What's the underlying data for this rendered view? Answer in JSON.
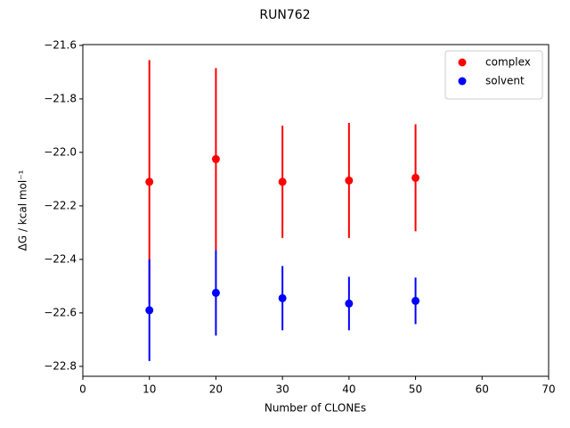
{
  "chart_data": {
    "type": "errorbar",
    "title": "RUN762",
    "x_label": "Number of CLONEs",
    "y_label": "ΔG / kcal mol⁻¹",
    "x": [
      10,
      20,
      30,
      40,
      50
    ],
    "series": [
      {
        "name": "complex",
        "color": "#ff0000",
        "values": [
          -22.11,
          -22.025,
          -22.11,
          -22.105,
          -22.095
        ],
        "errors": [
          0.455,
          0.34,
          0.21,
          0.215,
          0.2
        ]
      },
      {
        "name": "solvent",
        "color": "#0000ff",
        "values": [
          -22.59,
          -22.525,
          -22.545,
          -22.565,
          -22.555
        ],
        "errors": [
          0.19,
          0.16,
          0.12,
          0.1,
          0.087
        ]
      }
    ],
    "xlim": [
      0,
      70
    ],
    "xticks": [
      0,
      10,
      20,
      30,
      40,
      50,
      60,
      70
    ],
    "ylim": [
      -22.837,
      -21.597
    ],
    "yticks": [
      {
        "value": -22.8,
        "label": "−22.8"
      },
      {
        "value": -22.6,
        "label": "−22.6"
      },
      {
        "value": -22.4,
        "label": "−22.4"
      },
      {
        "value": -22.2,
        "label": "−22.2"
      },
      {
        "value": -22.0,
        "label": "−22.0"
      },
      {
        "value": -21.8,
        "label": "−21.8"
      },
      {
        "value": -21.6,
        "label": "−21.6"
      }
    ],
    "legend": "upper right"
  }
}
